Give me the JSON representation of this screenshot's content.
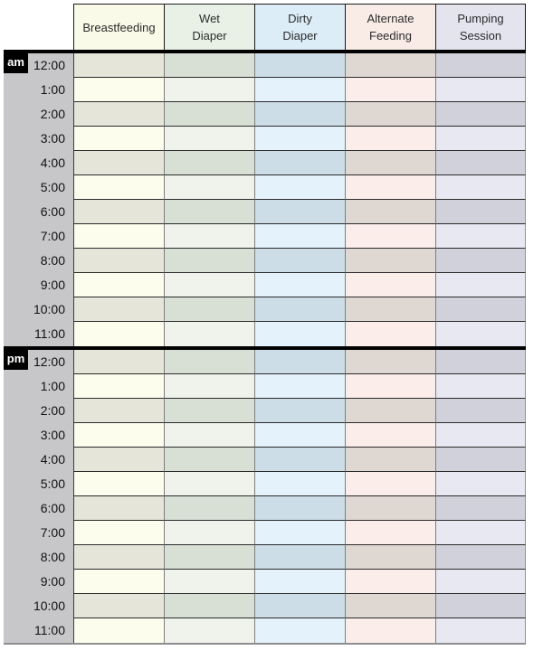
{
  "table": {
    "columns": [
      {
        "id": "breastfeeding",
        "label": "Breastfeeding",
        "label_lines": [
          "Breastfeeding"
        ],
        "header_bg": "#fafae9",
        "row_light": "#fdfdee",
        "row_dark": "#e5e5da"
      },
      {
        "id": "wet-diaper",
        "label": "Wet Diaper",
        "label_lines": [
          "Wet",
          "Diaper"
        ],
        "header_bg": "#e9f1e7",
        "row_light": "#eff3ec",
        "row_dark": "#d8dfd5"
      },
      {
        "id": "dirty-diaper",
        "label": "Dirty Diaper",
        "label_lines": [
          "Dirty",
          "Diaper"
        ],
        "header_bg": "#dcedf7",
        "row_light": "#e4f2fb",
        "row_dark": "#ccdde8"
      },
      {
        "id": "alternate-feeding",
        "label": "Alternate Feeding",
        "label_lines": [
          "Alternate",
          "Feeding"
        ],
        "header_bg": "#f9ece7",
        "row_light": "#fbeeea",
        "row_dark": "#dfd7d2"
      },
      {
        "id": "pumping-session",
        "label": "Pumping Session",
        "label_lines": [
          "Pumping",
          "Session"
        ],
        "header_bg": "#e3e4ee",
        "row_light": "#e8e8f2",
        "row_dark": "#d1d1db"
      }
    ],
    "sections": [
      {
        "meridiem": "am",
        "times": [
          "12:00",
          "1:00",
          "2:00",
          "3:00",
          "4:00",
          "5:00",
          "6:00",
          "7:00",
          "8:00",
          "9:00",
          "10:00",
          "11:00"
        ]
      },
      {
        "meridiem": "pm",
        "times": [
          "12:00",
          "1:00",
          "2:00",
          "3:00",
          "4:00",
          "5:00",
          "6:00",
          "7:00",
          "8:00",
          "9:00",
          "10:00",
          "11:00"
        ]
      }
    ],
    "cell_value": ""
  },
  "colors": {
    "page_bg": "#ffffff",
    "gutter_bg": "#c7c7c9",
    "time_text": "#111111",
    "header_text": "#2b2b2b",
    "badge_bg": "#000000",
    "badge_text": "#ffffff",
    "divider": "#000000",
    "row_border": "#2a2a2a",
    "col_border": "#7d7d7d",
    "gutter_border": "#3c3c3c",
    "outer_border": "#9094a0",
    "bottom_border": "#8d8d90",
    "header_border": "#1a1a1a"
  }
}
